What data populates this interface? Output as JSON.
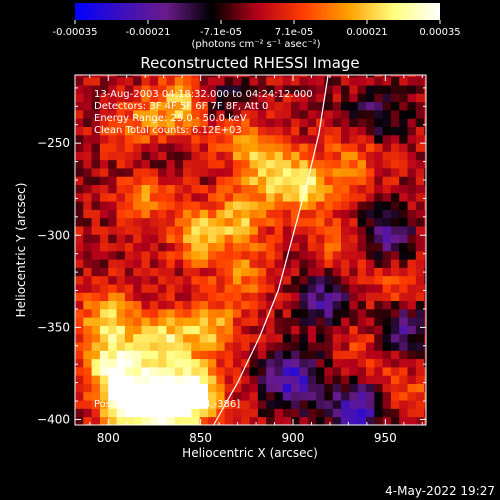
{
  "chart_data": {
    "type": "heatmap",
    "title": "Reconstructed RHESSI Image",
    "xlabel": "Heliocentric X (arcsec)",
    "ylabel": "Heliocentric Y (arcsec)",
    "xlim": [
      782,
      972
    ],
    "ylim": [
      -403,
      -213
    ],
    "x_ticks": [
      800,
      850,
      900,
      950
    ],
    "y_ticks": [
      -400,
      -350,
      -300,
      -250
    ],
    "colorbar": {
      "unit_label": "(photons cm⁻² s⁻¹ asec⁻²)",
      "range": [
        -0.00035,
        0.00035
      ],
      "ticks": [
        "-0.00035",
        "-0.00021",
        "-7.1e-05",
        "7.1e-05",
        "0.00021",
        "0.00035"
      ],
      "colormap": [
        "#0000ff",
        "#3b0fbf",
        "#6a1a8c",
        "#000000",
        "#b5001a",
        "#ff3c00",
        "#ffa000",
        "#ffff80",
        "#ffffff"
      ]
    },
    "annotations": [
      "13-Aug-2003 04:18:32.000 to 04:24:12.000",
      "Detectors: 3F 4F 5F 6F 7F 8F, Att 0",
      "Energy Range: 25.0 - 50.0 keV",
      "Clean    Total counts: 6.12E+03"
    ],
    "peak_label": "Position of Peak = [844,-386]",
    "peak_position": [
      844,
      -386
    ],
    "limb_curve": [
      [
        857,
        -403
      ],
      [
        870,
        -380
      ],
      [
        882,
        -355
      ],
      [
        892,
        -330
      ],
      [
        900,
        -300
      ],
      [
        908,
        -270
      ],
      [
        914,
        -245
      ],
      [
        919,
        -213
      ]
    ],
    "hotspots": [
      {
        "x": 812,
        "y": -390,
        "value": 0.00035
      },
      {
        "x": 830,
        "y": -392,
        "value": 0.00033
      },
      {
        "x": 845,
        "y": -386,
        "value": 0.00035
      },
      {
        "x": 803,
        "y": -370,
        "value": 0.00026
      },
      {
        "x": 830,
        "y": -358,
        "value": 0.00024
      },
      {
        "x": 800,
        "y": -345,
        "value": 0.00021
      },
      {
        "x": 855,
        "y": -350,
        "value": 0.00019
      },
      {
        "x": 850,
        "y": -300,
        "value": 0.00021
      },
      {
        "x": 873,
        "y": -290,
        "value": 0.00017
      },
      {
        "x": 820,
        "y": -276,
        "value": 0.00018
      },
      {
        "x": 885,
        "y": -262,
        "value": 0.00019
      },
      {
        "x": 905,
        "y": -272,
        "value": 0.00024
      },
      {
        "x": 838,
        "y": -228,
        "value": 0.00021
      },
      {
        "x": 815,
        "y": -245,
        "value": 0.00017
      },
      {
        "x": 870,
        "y": -243,
        "value": 0.00015
      },
      {
        "x": 875,
        "y": -322,
        "value": 0.00013
      },
      {
        "x": 925,
        "y": -305,
        "value": 0.00012
      },
      {
        "x": 940,
        "y": -360,
        "value": 0.0001
      },
      {
        "x": 955,
        "y": -330,
        "value": 0.00011
      },
      {
        "x": 960,
        "y": -385,
        "value": 0.0001
      },
      {
        "x": 935,
        "y": -258,
        "value": 0.00013
      }
    ],
    "coldspots": [
      {
        "x": 900,
        "y": -378,
        "value": -0.00026
      },
      {
        "x": 935,
        "y": -395,
        "value": -0.00024
      },
      {
        "x": 958,
        "y": -350,
        "value": -0.00021
      },
      {
        "x": 950,
        "y": -300,
        "value": -0.00017
      },
      {
        "x": 945,
        "y": -236,
        "value": -0.00014
      },
      {
        "x": 820,
        "y": -260,
        "value": -0.00014
      },
      {
        "x": 865,
        "y": -230,
        "value": -0.00013
      },
      {
        "x": 918,
        "y": -335,
        "value": -0.00019
      }
    ]
  },
  "timestamp": "4-May-2022 19:27"
}
